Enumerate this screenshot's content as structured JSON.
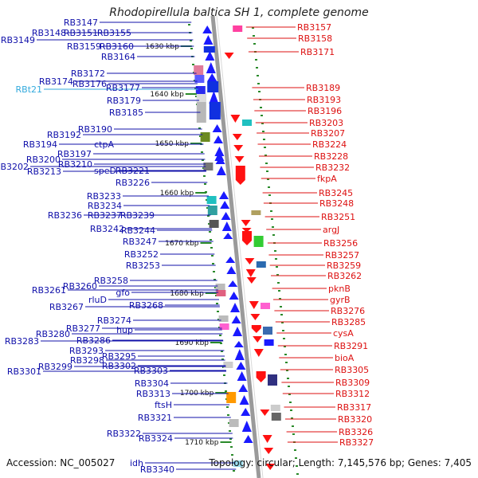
{
  "title": "Rhodopirellula baltica SH 1, complete genome",
  "accession": "Accession: NC_005027",
  "summary": "Topology: circular; Length: 7,145,576 bp; Genes: 7,405",
  "colors": {
    "left_labels": "#1010aa",
    "right_labels": "#dd1111",
    "rna_label": "#33aadd",
    "forward": "#1a1aff",
    "reverse": "#ff1111",
    "backbone": "#9a9a9a",
    "ticks": "#2a8a2a"
  },
  "scale_labels": [
    "1630 kbp",
    "1640 kbp",
    "1650 kbp",
    "1660 kbp",
    "1670 kbp",
    "1680 kbp",
    "1690 kbp",
    "1700 kbp",
    "1710 kbp"
  ],
  "left_labels": [
    "RB3147",
    "RB3148",
    "RB3151",
    "RB3155",
    "RB3149",
    "RB3159",
    "RB3160",
    "RB3164",
    "RB3172",
    "RB3174",
    "RB3176",
    "RBt21",
    "RB3177",
    "RB3179",
    "RB3185",
    "RB3190",
    "RB3192",
    "RB3194",
    "ctpA",
    "RB3197",
    "RB3200",
    "RB3210",
    "RB3202",
    "RB3213",
    "speD",
    "RB3221",
    "RB3226",
    "RB3233",
    "RB3234",
    "RB3236",
    "RB3237",
    "RB3239",
    "RB3242",
    "RB3244",
    "RB3247",
    "RB3252",
    "RB3253",
    "RB3258",
    "RB3261",
    "RB3260",
    "gfo",
    "rluD",
    "RB3267",
    "RB3268",
    "RB3274",
    "RB3277",
    "hup",
    "RB3280",
    "RB3283",
    "RB3286",
    "RB3293",
    "RB3295",
    "RB3298",
    "RB3302",
    "RB3299",
    "RB3301",
    "RB3303",
    "RB3304",
    "RB3313",
    "ftsH",
    "RB3321",
    "RB3322",
    "RB3324",
    "idh",
    "RB3340"
  ],
  "right_labels": [
    "RB3157",
    "RB3158",
    "RB3171",
    "RB3189",
    "RB3193",
    "RB3196",
    "RB3203",
    "RB3207",
    "RB3224",
    "RB3228",
    "RB3232",
    "fkpA",
    "RB3245",
    "RB3248",
    "RB3251",
    "argJ",
    "RB3256",
    "RB3257",
    "RB3259",
    "RB3262",
    "pknB",
    "gyrB",
    "RB3276",
    "RB3285",
    "cysA",
    "RB3291",
    "bioA",
    "RB3305",
    "RB3309",
    "RB3312",
    "RB3317",
    "RB3320",
    "RB3326",
    "RB3327"
  ]
}
